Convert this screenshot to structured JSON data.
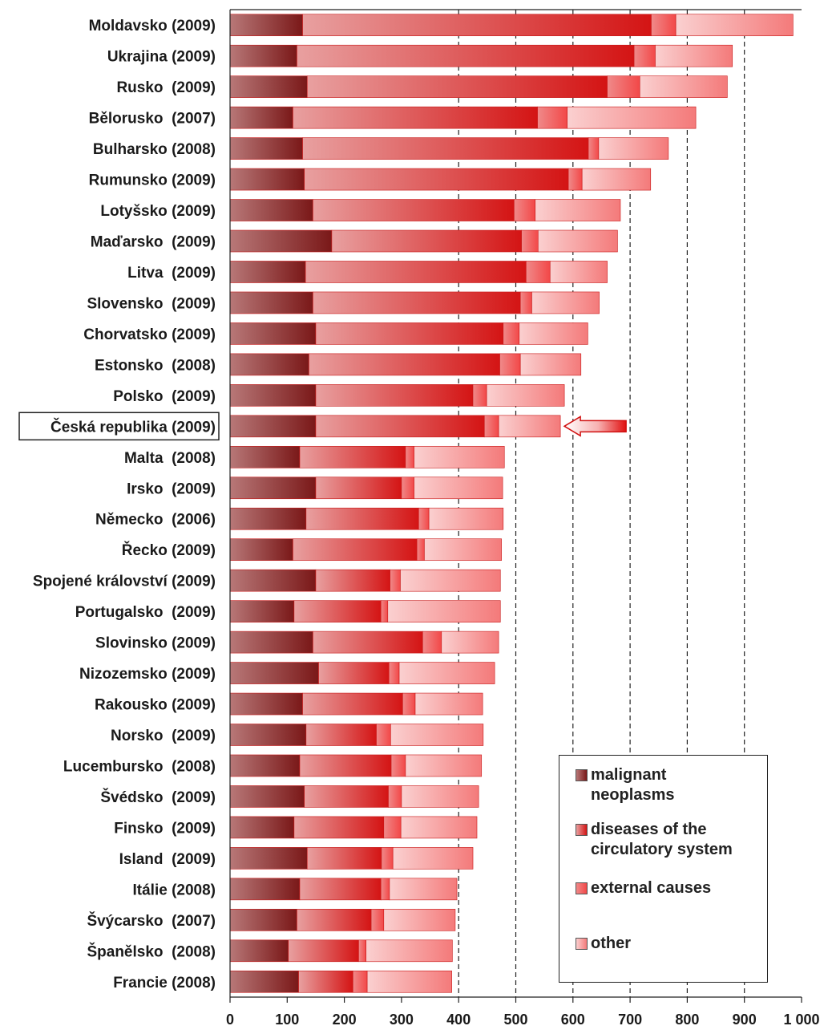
{
  "chart_data": {
    "type": "bar",
    "orientation": "horizontal",
    "stacked": true,
    "title": "",
    "xlabel": "",
    "ylabel": "",
    "xlim": [
      0,
      1000
    ],
    "x_ticks": [
      "0",
      "100",
      "200",
      "300",
      "400",
      "500",
      "600",
      "700",
      "800",
      "900",
      "1 000"
    ],
    "gridlines": "vertical dashed at 400-900",
    "legend_position": "bottom-right",
    "highlighted_category": "Česká republika (2009)",
    "categories": [
      "Moldavsko (2009)",
      "Ukrajina (2009)",
      "Rusko  (2009)",
      "Bělorusko  (2007)",
      "Bulharsko (2008)",
      "Rumunsko (2009)",
      "Lotyšsko (2009)",
      "Maďarsko  (2009)",
      "Litva  (2009)",
      "Slovensko  (2009)",
      "Chorvatsko (2009)",
      "Estonsko  (2008)",
      "Polsko  (2009)",
      "Česká republika (2009)",
      "Malta  (2008)",
      "Irsko  (2009)",
      "Německo  (2006)",
      "Řecko (2009)",
      "Spojené království (2009)",
      "Portugalsko  (2009)",
      "Slovinsko (2009)",
      "Nizozemsko (2009)",
      "Rakousko (2009)",
      "Norsko  (2009)",
      "Lucembursko  (2008)",
      "Švédsko  (2009)",
      "Finsko  (2009)",
      "Island  (2009)",
      "Itálie (2008)",
      "Švýcarsko  (2007)",
      "Španělsko  (2008)",
      "Francie (2008)"
    ],
    "series": [
      {
        "name": "malignant neoplasms",
        "color": "#8b1a1a",
        "values": [
          127,
          117,
          135,
          110,
          127,
          130,
          145,
          178,
          132,
          145,
          150,
          138,
          150,
          150,
          122,
          150,
          133,
          110,
          150,
          112,
          145,
          155,
          127,
          133,
          122,
          130,
          112,
          135,
          122,
          117,
          102,
          120
        ]
      },
      {
        "name": "diseases of the circulatory system",
        "color": "#dd1c1c",
        "values": [
          610,
          590,
          525,
          428,
          500,
          462,
          352,
          332,
          386,
          363,
          328,
          334,
          275,
          295,
          185,
          150,
          197,
          217,
          130,
          152,
          192,
          123,
          175,
          123,
          160,
          147,
          157,
          130,
          142,
          130,
          123,
          95
        ]
      },
      {
        "name": "external causes",
        "color": "#f25a5a",
        "values": [
          43,
          37,
          57,
          52,
          18,
          24,
          37,
          29,
          42,
          20,
          28,
          36,
          24,
          25,
          15,
          22,
          18,
          13,
          18,
          12,
          33,
          18,
          22,
          25,
          25,
          23,
          30,
          20,
          15,
          22,
          13,
          25
        ]
      },
      {
        "name": "other",
        "color": "#f7a0a0",
        "values": [
          205,
          135,
          153,
          225,
          122,
          120,
          149,
          139,
          100,
          118,
          120,
          106,
          136,
          108,
          158,
          155,
          130,
          135,
          175,
          197,
          100,
          167,
          118,
          162,
          133,
          135,
          133,
          140,
          118,
          125,
          151,
          148
        ]
      }
    ]
  },
  "legend": {
    "items": [
      {
        "label": "malignant\nneoplasms",
        "color": "#8b1a1a"
      },
      {
        "label": "diseases of the\ncirculatory system",
        "color": "#dd1c1c"
      },
      {
        "label": "external causes",
        "color": "#f25a5a"
      },
      {
        "label": "other",
        "color": "#f7a0a0"
      }
    ]
  }
}
